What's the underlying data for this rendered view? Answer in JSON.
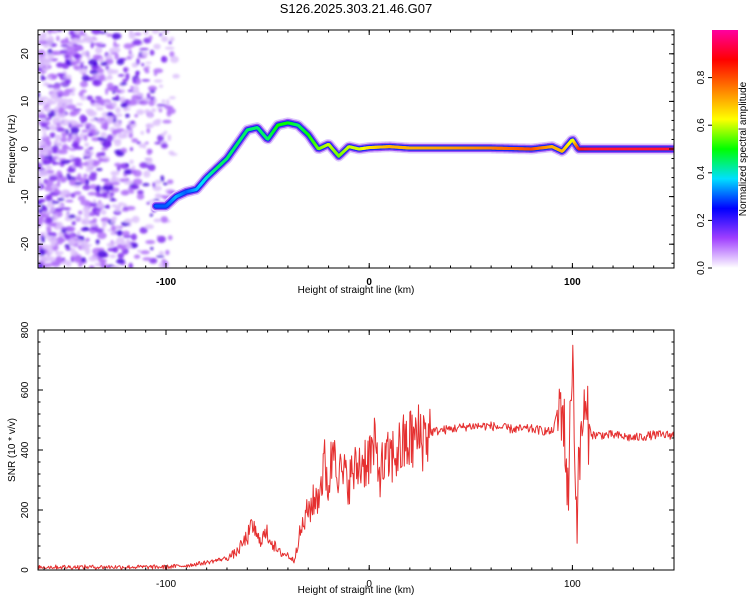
{
  "title": "S126.2025.303.21.46.G07",
  "chart_data": [
    {
      "type": "heatmap",
      "name": "spectrogram",
      "xlabel": "Height of straight line (km)",
      "ylabel": "Frequency (Hz)",
      "xlim": [
        -163,
        150
      ],
      "ylim": [
        -25,
        25
      ],
      "xticks": [
        "-100",
        "0",
        "100"
      ],
      "xtick_values": [
        -100,
        0,
        100
      ],
      "yticks": [
        "-20",
        "-10",
        "0",
        "10",
        "20"
      ],
      "ytick_values": [
        -20,
        -10,
        0,
        10,
        20
      ],
      "colorbar": {
        "label": "Normalized spectral amplitude",
        "ticks": [
          "0.0",
          "0.2",
          "0.4",
          "0.6",
          "0.8"
        ],
        "tick_values": [
          0.0,
          0.2,
          0.4,
          0.6,
          0.8
        ],
        "stops": [
          "#ffffff",
          "#a040ff",
          "#0000ff",
          "#00e0ff",
          "#00ff00",
          "#ffff00",
          "#ff8000",
          "#ff0000",
          "#ff00a0"
        ]
      },
      "noise_region_x": [
        -163,
        -95
      ],
      "ridge": {
        "x": [
          -105,
          -100,
          -95,
          -90,
          -85,
          -80,
          -75,
          -70,
          -65,
          -60,
          -55,
          -50,
          -45,
          -40,
          -35,
          -30,
          -25,
          -20,
          -15,
          -10,
          -5,
          0,
          10,
          20,
          40,
          60,
          80,
          90,
          95,
          100,
          103,
          110,
          150
        ],
        "freq": [
          -12,
          -12,
          -10,
          -9,
          -8.5,
          -6,
          -4,
          -2,
          1,
          4,
          4.5,
          2,
          5,
          5.5,
          5,
          3,
          0,
          1,
          -1.5,
          0.5,
          0,
          0.3,
          0.5,
          0.2,
          0.2,
          0.2,
          0,
          0.5,
          -0.5,
          2,
          0,
          0,
          0
        ],
        "amplitude": [
          0.3,
          0.3,
          0.35,
          0.3,
          0.35,
          0.4,
          0.45,
          0.45,
          0.45,
          0.45,
          0.45,
          0.45,
          0.5,
          0.5,
          0.45,
          0.5,
          0.55,
          0.6,
          0.55,
          0.6,
          0.6,
          0.65,
          0.7,
          0.7,
          0.72,
          0.75,
          0.8,
          0.7,
          0.7,
          0.6,
          0.85,
          0.95,
          0.95
        ]
      }
    },
    {
      "type": "line",
      "name": "snr",
      "xlabel": "Height of straight line (km)",
      "ylabel": "SNR (10 * v/v)",
      "xlim": [
        -163,
        150
      ],
      "ylim": [
        0,
        800
      ],
      "xticks": [
        "-100",
        "0",
        "100"
      ],
      "xtick_values": [
        -100,
        0,
        100
      ],
      "yticks": [
        "0",
        "200",
        "400",
        "600",
        "800"
      ],
      "ytick_values": [
        0,
        200,
        400,
        600,
        800
      ],
      "color": "#e53030",
      "series": [
        {
          "name": "SNR",
          "x": [
            -163,
            -120,
            -100,
            -90,
            -80,
            -70,
            -65,
            -60,
            -57,
            -55,
            -50,
            -45,
            -40,
            -37,
            -35,
            -30,
            -25,
            -22,
            -20,
            -17,
            -15,
            -10,
            -5,
            0,
            3,
            5,
            10,
            15,
            20,
            30,
            40,
            50,
            60,
            70,
            80,
            90,
            95,
            98,
            100,
            102,
            105,
            108,
            110,
            120,
            130,
            140,
            150
          ],
          "y": [
            10,
            10,
            10,
            15,
            25,
            40,
            60,
            110,
            150,
            100,
            120,
            60,
            50,
            30,
            100,
            200,
            250,
            350,
            280,
            450,
            320,
            300,
            350,
            380,
            400,
            330,
            370,
            400,
            430,
            460,
            470,
            480,
            480,
            470,
            470,
            460,
            560,
            250,
            760,
            180,
            520,
            480,
            450,
            450,
            440,
            450,
            450
          ]
        }
      ]
    }
  ]
}
